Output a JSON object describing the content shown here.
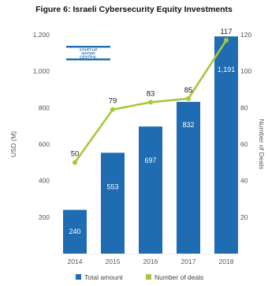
{
  "chart_data": {
    "type": "bar",
    "title": "Figure 6: Israeli Cybersecurity Equity Investments",
    "categories": [
      "2014",
      "2015",
      "2016",
      "2017",
      "2018"
    ],
    "series": [
      {
        "name": "Total amount",
        "type": "bar",
        "axis": "left",
        "values": [
          240,
          553,
          697,
          832,
          1191
        ],
        "labels": [
          "240",
          "553",
          "697",
          "832",
          "1,191"
        ],
        "color": "#1f6cb3"
      },
      {
        "name": "Number of deals",
        "type": "line",
        "axis": "right",
        "values": [
          50,
          79,
          83,
          85,
          117
        ],
        "labels": [
          "50",
          "79",
          "83",
          "85",
          "117"
        ],
        "color": "#a5c83c"
      }
    ],
    "ylabel": "USD (M)",
    "y2label": "Number of Deals",
    "ylim": [
      0,
      1200
    ],
    "y2lim": [
      0,
      120
    ],
    "yticks": [
      "200",
      "400",
      "600",
      "800",
      "1,000",
      "1,200"
    ],
    "y2ticks": [
      "20",
      "40",
      "60",
      "80",
      "100",
      "120"
    ],
    "grid": false,
    "legend_position": "bottom",
    "logo": {
      "lines": [
        "START-UP",
        "NATION",
        "CENTRAL"
      ],
      "color": "#1f6cb3"
    }
  }
}
